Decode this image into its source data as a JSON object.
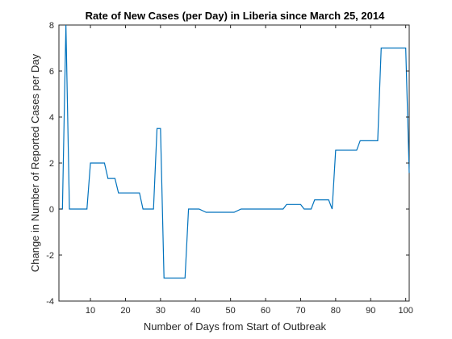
{
  "chart_data": {
    "type": "line",
    "title": "Rate of New Cases (per Day) in Liberia since March 25, 2014",
    "xlabel": "Number of Days from Start of Outbreak",
    "ylabel": "Change in Number of Reported Cases per Day",
    "xlim": [
      1,
      101
    ],
    "ylim": [
      -4,
      8
    ],
    "xticks": [
      10,
      20,
      30,
      40,
      50,
      60,
      70,
      80,
      90,
      100
    ],
    "yticks": [
      -4,
      -2,
      0,
      2,
      4,
      6,
      8
    ],
    "grid": false,
    "series_color": "#0072BD",
    "series": [
      {
        "x": [
          1,
          2,
          3,
          4,
          9,
          10,
          14,
          15,
          17,
          18,
          24,
          25,
          28,
          29,
          30,
          31,
          37,
          38,
          41,
          43,
          51,
          53,
          65,
          66,
          70,
          71,
          73,
          74,
          78,
          79,
          80,
          86,
          87,
          92,
          93,
          100,
          101
        ],
        "y": [
          0,
          0,
          8,
          0,
          0,
          2,
          2,
          1.33,
          1.33,
          0.7,
          0.7,
          0,
          0,
          3.5,
          3.5,
          -3,
          -3,
          0,
          0,
          -0.14,
          -0.14,
          0,
          0,
          0.2,
          0.2,
          0,
          0,
          0.4,
          0.4,
          0,
          2.56,
          2.56,
          2.97,
          2.97,
          7,
          7,
          1.57
        ]
      }
    ]
  }
}
